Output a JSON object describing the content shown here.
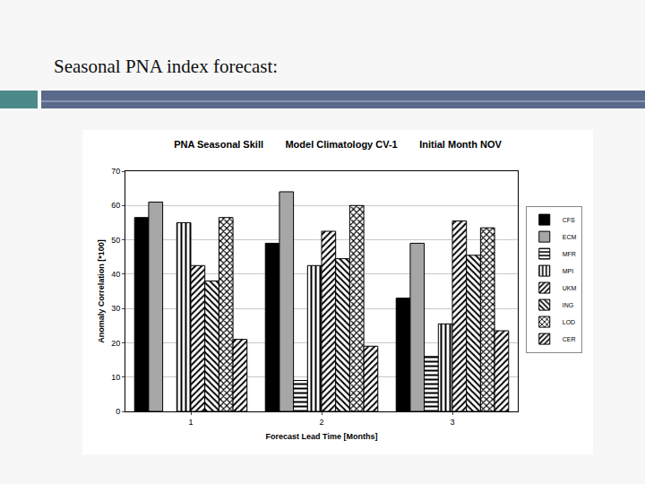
{
  "header": {
    "title": "Seasonal PNA index forecast:"
  },
  "chart_data": {
    "type": "bar",
    "title": "PNA Seasonal Skill    Model Climatology CV-1    Initial Month NOV",
    "x_label": "Forecast Lead Time [Months]",
    "y_label": "Anomaly Correlation [*100]",
    "categories": [
      "1",
      "2",
      "3"
    ],
    "series": [
      {
        "name": "CFS",
        "color": "#000000",
        "values": [
          56.5,
          49,
          33
        ]
      },
      {
        "name": "ECM",
        "color": "#a6a6a6",
        "values": [
          61,
          64,
          49
        ]
      },
      {
        "name": "MFR",
        "color": "#ffffff",
        "values": [
          null,
          9,
          16
        ]
      },
      {
        "name": "MPI",
        "color": "#ffffff",
        "values": [
          55,
          42.5,
          25.5
        ]
      },
      {
        "name": "UKM",
        "color": "#ffffff",
        "values": [
          42.5,
          52.5,
          55.5
        ]
      },
      {
        "name": "ING",
        "color": "#ffffff",
        "values": [
          38,
          44.5,
          45.5
        ]
      },
      {
        "name": "LOD",
        "color": "#ffffff",
        "values": [
          56.5,
          60,
          53.5
        ]
      },
      {
        "name": "CER",
        "color": "#ffffff",
        "values": [
          21,
          19,
          23.5
        ]
      }
    ],
    "ylim": [
      0,
      70
    ],
    "yticks": [
      0,
      10,
      20,
      30,
      40,
      50,
      60,
      70
    ],
    "grid": true,
    "legend": "right"
  }
}
